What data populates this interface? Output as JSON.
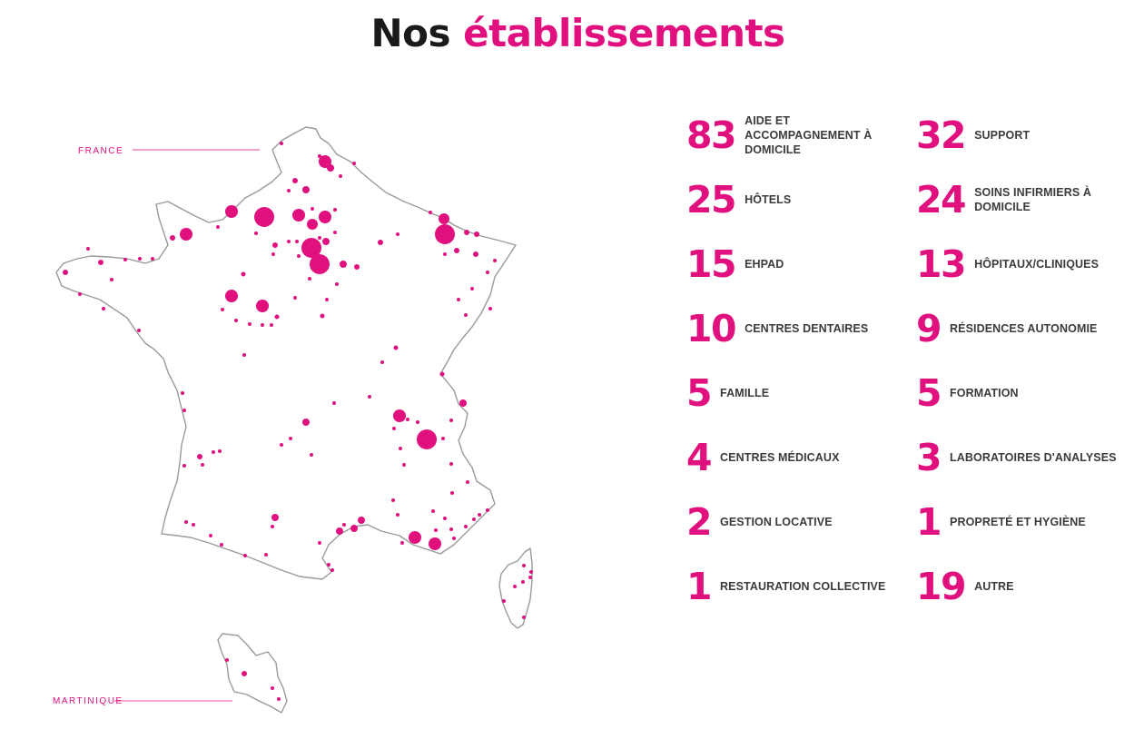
{
  "header": {
    "title_part1": "Nos",
    "title_part2": "établissements"
  },
  "colors": {
    "accent": "#e0117f",
    "text_dark": "#1a1a1a",
    "outline": "#9a9a9a"
  },
  "map": {
    "label_france": "FRANCE",
    "label_martinique": "MARTINIQUE"
  },
  "stats": [
    {
      "value": "83",
      "label": "AIDE ET ACCOMPAGNEMENT À DOMICILE"
    },
    {
      "value": "32",
      "label": "SUPPORT"
    },
    {
      "value": "25",
      "label": "HÔTELS"
    },
    {
      "value": "24",
      "label": "SOINS INFIRMIERS À DOMICILE"
    },
    {
      "value": "15",
      "label": "EHPAD"
    },
    {
      "value": "13",
      "label": "HÔPITAUX/CLINIQUES"
    },
    {
      "value": "10",
      "label": "CENTRES DENTAIRES"
    },
    {
      "value": "9",
      "label": "RÉSIDENCES AUTONOMIE"
    },
    {
      "value": "5",
      "label": "FAMILLE"
    },
    {
      "value": "5",
      "label": "FORMATION"
    },
    {
      "value": "4",
      "label": "CENTRES MÉDICAUX"
    },
    {
      "value": "3",
      "label": "LABORATOIRES D'ANALYSES"
    },
    {
      "value": "2",
      "label": "GESTION LOCATIVE"
    },
    {
      "value": "1",
      "label": "PROPRETÉ ET HYGIÈNE"
    },
    {
      "value": "1",
      "label": "RESTAURATION COLLECTIVE"
    },
    {
      "value": "19",
      "label": "AUTRE"
    }
  ]
}
